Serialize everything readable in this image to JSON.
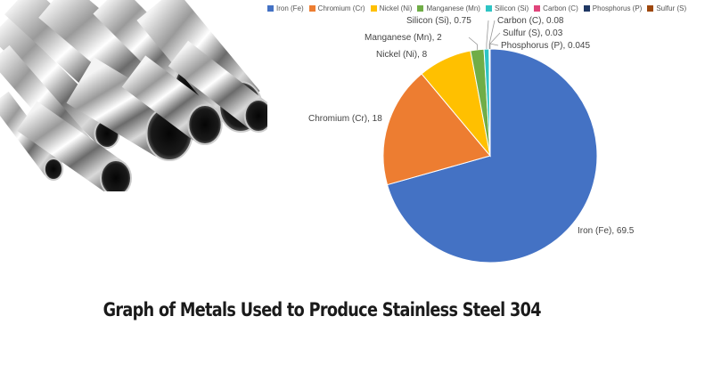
{
  "caption": "Graph of Metals Used to Produce Stainless Steel 304",
  "photo_icon": "stainless-steel-pipes-photo",
  "chart_data": {
    "type": "pie",
    "title": "",
    "legend_position": "top",
    "slices": [
      {
        "label": "Iron (Fe)",
        "value": 69.5,
        "color": "#4472C4",
        "data_label": "Iron (Fe), 69.5"
      },
      {
        "label": "Chromium (Cr)",
        "value": 18,
        "color": "#ED7D31",
        "data_label": "Chromium (Cr), 18"
      },
      {
        "label": "Nickel (Ni)",
        "value": 8,
        "color": "#FFC000",
        "data_label": "Nickel (Ni), 8"
      },
      {
        "label": "Manganese (Mn)",
        "value": 2,
        "color": "#70AD47",
        "data_label": "Manganese (Mn), 2"
      },
      {
        "label": "Silicon (Si)",
        "value": 0.75,
        "color": "#2EC4C4",
        "data_label": "Silicon (Si), 0.75"
      },
      {
        "label": "Carbon (C)",
        "value": 0.08,
        "color": "#E0457B",
        "data_label": "Carbon (C), 0.08"
      },
      {
        "label": "Phosphorus (P)",
        "value": 0.045,
        "color": "#1F3864",
        "data_label": "Phosphorus (P), 0.045"
      },
      {
        "label": "Sulfur (S)",
        "value": 0.03,
        "color": "#9E480E",
        "data_label": "Sulfur (S), 0.03"
      }
    ]
  }
}
